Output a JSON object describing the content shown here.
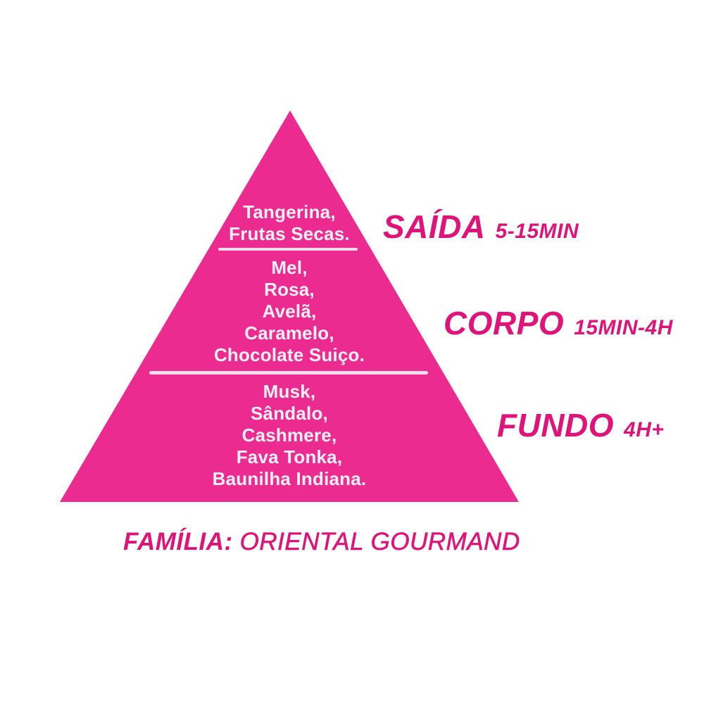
{
  "colors": {
    "background": "#ffffff",
    "triangle": "#ec2b90",
    "label": "#e01478",
    "note_text": "#fdf0f7",
    "divider": "#f8dcec"
  },
  "pyramid": {
    "levels": [
      {
        "id": "saida",
        "label": "SAÍDA",
        "duration": "5-15MIN",
        "notes": [
          "Tangerina,",
          "Frutas Secas."
        ]
      },
      {
        "id": "corpo",
        "label": "CORPO",
        "duration": "15MIN-4H",
        "notes": [
          "Mel,",
          "Rosa,",
          "Avelã,",
          "Caramelo,",
          "Chocolate Suiço."
        ]
      },
      {
        "id": "fundo",
        "label": "FUNDO",
        "duration": "4H+",
        "notes": [
          "Musk,",
          "Sândalo,",
          "Cashmere,",
          "Fava Tonka,",
          "Baunilha Indiana."
        ]
      }
    ]
  },
  "family": {
    "label": "FAMÍLIA:",
    "value": "ORIENTAL GOURMAND"
  }
}
